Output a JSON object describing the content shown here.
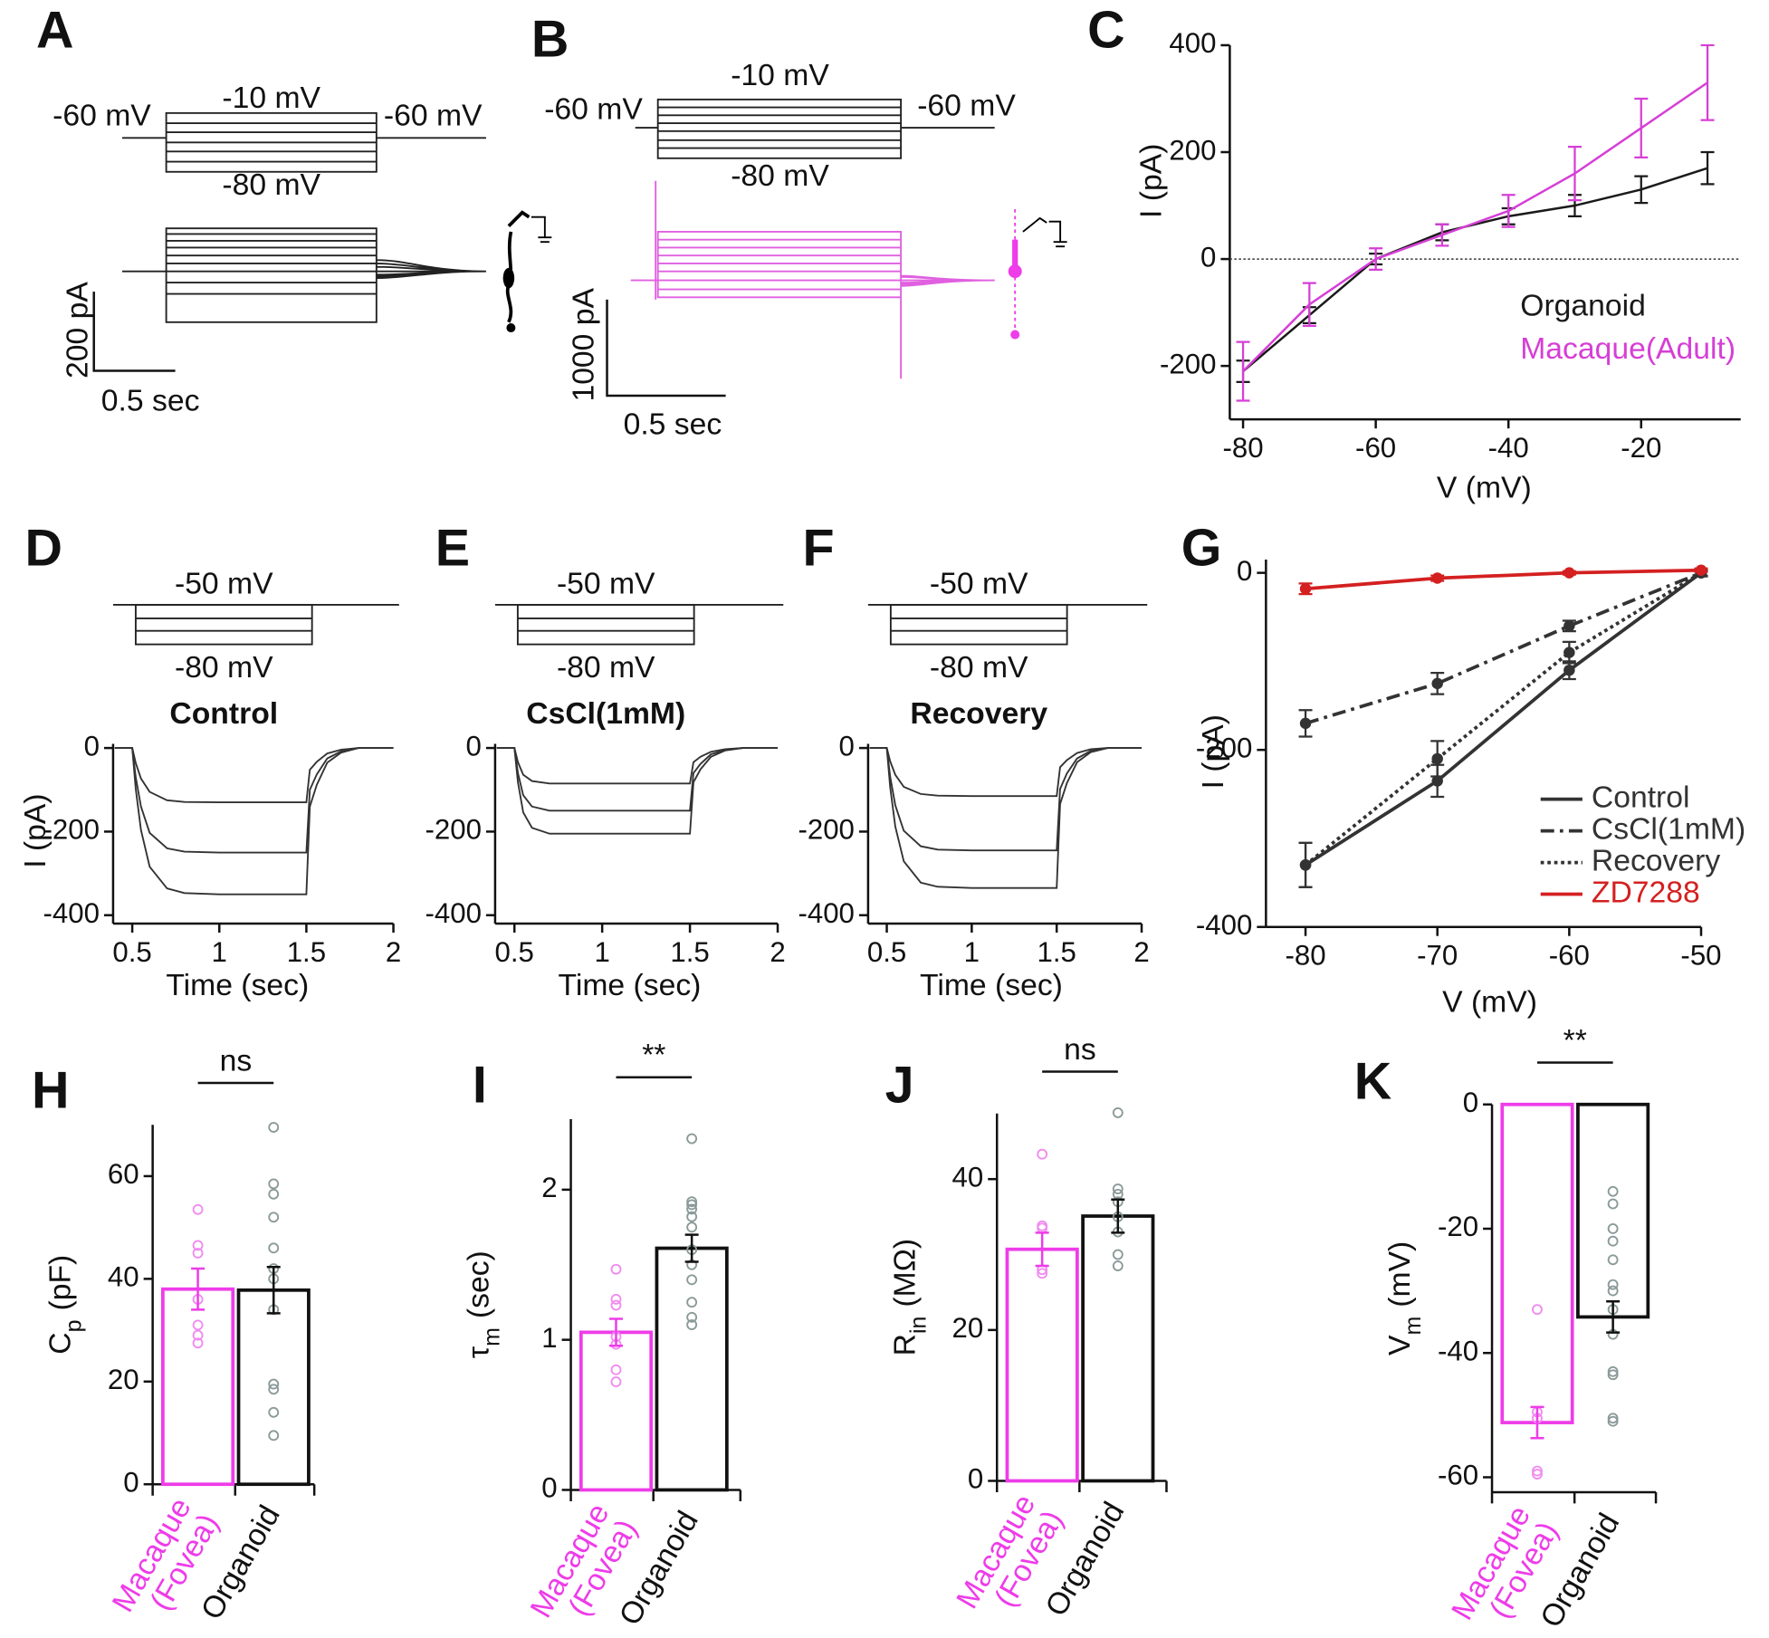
{
  "panels_ab": [
    {
      "label": "A",
      "step_top": "-10 mV",
      "hold_left": "-60 mV",
      "hold_right": "-60 mV",
      "step_bottom": "-80 mV",
      "scale_current": "200 pA",
      "scale_time": "0.5 sec"
    },
    {
      "label": "B",
      "step_top": "-10 mV",
      "hold_left": "-60 mV",
      "hold_right": "-60 mV",
      "step_bottom": "-80 mV",
      "scale_current": "1000 pA",
      "scale_time": "0.5 sec"
    }
  ],
  "chart_data": [
    {
      "panel": "C",
      "type": "line",
      "xlabel": "V (mV)",
      "ylabel": "I (pA)",
      "x": [
        -80,
        -70,
        -60,
        -50,
        -40,
        -30,
        -20,
        -10
      ],
      "xlim": [
        -82,
        -5
      ],
      "ylim": [
        -300,
        400
      ],
      "xticks": [
        -80,
        -60,
        -40,
        -20
      ],
      "yticks": [
        -200,
        0,
        200,
        400
      ],
      "zero_line": true,
      "series": [
        {
          "name": "Organoid",
          "color": "#1a1a1a",
          "values": [
            -210,
            -105,
            0,
            50,
            80,
            100,
            130,
            170
          ],
          "errors": [
            20,
            15,
            10,
            15,
            15,
            20,
            25,
            30
          ]
        },
        {
          "name": "Macaque(Adult)",
          "color": "#d63fd6",
          "values": [
            -210,
            -85,
            0,
            45,
            90,
            160,
            245,
            330
          ],
          "errors": [
            55,
            40,
            20,
            20,
            30,
            50,
            55,
            70
          ]
        }
      ]
    },
    {
      "panel": "G",
      "type": "line",
      "xlabel": "V (mV)",
      "ylabel": "I (pA)",
      "x": [
        -80,
        -70,
        -60,
        -50
      ],
      "xlim": [
        -83,
        -50
      ],
      "ylim": [
        -400,
        15
      ],
      "xticks": [
        -80,
        -70,
        -60,
        -50
      ],
      "yticks": [
        -400,
        -200,
        0
      ],
      "markers": true,
      "series": [
        {
          "name": "Control",
          "color": "#333333",
          "dash": "solid",
          "values": [
            -330,
            -235,
            -110,
            0
          ],
          "errors": [
            25,
            18,
            10,
            4
          ]
        },
        {
          "name": "CsCl(1mM)",
          "color": "#333333",
          "dash": "dashdot",
          "values": [
            -170,
            -125,
            -60,
            0
          ],
          "errors": [
            15,
            12,
            6,
            3
          ]
        },
        {
          "name": "Recovery",
          "color": "#333333",
          "dash": "dotted",
          "values": [
            -330,
            -210,
            -90,
            0
          ],
          "errors": [
            25,
            20,
            12,
            4
          ]
        },
        {
          "name": "ZD7288",
          "color": "#d42020",
          "dash": "solid",
          "values": [
            -18,
            -6,
            0,
            3
          ],
          "errors": [
            6,
            3,
            2,
            2
          ]
        }
      ]
    },
    {
      "panel": "D",
      "type": "line",
      "title": "Control",
      "annotations": [
        "-50 mV",
        "-80 mV"
      ],
      "xlabel": "Time (sec)",
      "ylabel": "I (pA)",
      "x": [
        0.4,
        0.5,
        0.52,
        0.55,
        0.6,
        0.7,
        0.8,
        1.0,
        1.2,
        1.5,
        1.52,
        1.56,
        1.62,
        1.7,
        1.8,
        2.0
      ],
      "xlim": [
        0.39,
        2
      ],
      "ylim": [
        -420,
        10
      ],
      "xticks": [
        0.5,
        1,
        1.5,
        2
      ],
      "yticks": [
        -400,
        -200,
        0
      ],
      "series": [
        {
          "color": "#333333",
          "values": [
            0,
            0,
            -36,
            -73,
            -105,
            -125,
            -129,
            -130,
            -130,
            -130,
            -52,
            -33,
            -13,
            -4,
            0,
            0
          ]
        },
        {
          "color": "#333333",
          "values": [
            0,
            0,
            -70,
            -140,
            -203,
            -240,
            -248,
            -250,
            -250,
            -250,
            -100,
            -63,
            -25,
            -8,
            0,
            0
          ]
        },
        {
          "color": "#333333",
          "values": [
            0,
            0,
            -98,
            -196,
            -284,
            -336,
            -347,
            -350,
            -350,
            -350,
            -140,
            -88,
            -35,
            -11,
            0,
            0
          ]
        }
      ]
    },
    {
      "panel": "E",
      "type": "line",
      "title": "CsCl(1mM)",
      "annotations": [
        "-50 mV",
        "-80 mV"
      ],
      "xlabel": "Time (sec)",
      "x": [
        0.4,
        0.5,
        0.52,
        0.55,
        0.6,
        0.7,
        0.8,
        1.0,
        1.2,
        1.5,
        1.52,
        1.56,
        1.62,
        1.7,
        1.8,
        2.0
      ],
      "xlim": [
        0.39,
        2
      ],
      "ylim": [
        -420,
        10
      ],
      "xticks": [
        0.5,
        1,
        1.5,
        2
      ],
      "yticks": [
        -400,
        -200,
        0
      ],
      "series": [
        {
          "color": "#333333",
          "values": [
            0,
            0,
            -34,
            -64,
            -79,
            -85,
            -85,
            -85,
            -85,
            -85,
            -34,
            -21,
            -9,
            -3,
            0,
            0
          ]
        },
        {
          "color": "#333333",
          "values": [
            0,
            0,
            -60,
            -113,
            -140,
            -150,
            -150,
            -150,
            -150,
            -150,
            -60,
            -38,
            -15,
            -5,
            0,
            0
          ]
        },
        {
          "color": "#333333",
          "values": [
            0,
            0,
            -82,
            -154,
            -191,
            -205,
            -205,
            -205,
            -205,
            -205,
            -82,
            -51,
            -21,
            -6,
            0,
            0
          ]
        }
      ]
    },
    {
      "panel": "F",
      "type": "line",
      "title": "Recovery",
      "annotations": [
        "-50 mV",
        "-80 mV"
      ],
      "xlabel": "Time (sec)",
      "x": [
        0.4,
        0.5,
        0.52,
        0.55,
        0.6,
        0.7,
        0.8,
        1.0,
        1.2,
        1.5,
        1.52,
        1.56,
        1.62,
        1.7,
        1.8,
        2.0
      ],
      "xlim": [
        0.39,
        2
      ],
      "ylim": [
        -420,
        10
      ],
      "xticks": [
        0.5,
        1,
        1.5,
        2
      ],
      "yticks": [
        -400,
        -200,
        0
      ],
      "series": [
        {
          "color": "#333333",
          "values": [
            0,
            0,
            -32,
            -64,
            -93,
            -110,
            -114,
            -115,
            -115,
            -115,
            -46,
            -29,
            -12,
            -3,
            0,
            0
          ]
        },
        {
          "color": "#333333",
          "values": [
            0,
            0,
            -69,
            -137,
            -198,
            -235,
            -243,
            -245,
            -245,
            -245,
            -98,
            -61,
            -25,
            -7,
            0,
            0
          ]
        },
        {
          "color": "#333333",
          "values": [
            0,
            0,
            -94,
            -188,
            -271,
            -322,
            -332,
            -335,
            -335,
            -335,
            -134,
            -84,
            -34,
            -10,
            0,
            0
          ]
        }
      ]
    },
    {
      "panel": "H",
      "type": "bar",
      "ylabel": {
        "symbol": "C",
        "sub": "p",
        "unit": "(pF)"
      },
      "significance": "ns",
      "categories": [
        "Macaque (Fovea)",
        "Organoid"
      ],
      "colors": [
        "#ee3ce9",
        "#111111"
      ],
      "point_colors": [
        "#f08cf0",
        "#8a9a98"
      ],
      "values": [
        38,
        37.8
      ],
      "errors": [
        4,
        4.5
      ],
      "ylim": [
        0,
        70
      ],
      "yticks": [
        0,
        20,
        40,
        60
      ],
      "points": [
        [
          53.5,
          46.5,
          45,
          36,
          31,
          29,
          27.5
        ],
        [
          69.5,
          58.5,
          56.5,
          52,
          46,
          42,
          40,
          34,
          19.5,
          18.5,
          14,
          9.5
        ]
      ]
    },
    {
      "panel": "I",
      "type": "bar",
      "ylabel": {
        "symbol": "τ",
        "sub": "m",
        "unit": "(sec)"
      },
      "significance": "**",
      "categories": [
        "Macaque (Fovea)",
        "Organoid"
      ],
      "colors": [
        "#ee3ce9",
        "#111111"
      ],
      "point_colors": [
        "#f08cf0",
        "#8a9a98"
      ],
      "values": [
        1.05,
        1.61
      ],
      "errors": [
        0.09,
        0.09
      ],
      "ylim": [
        0,
        2.47
      ],
      "yticks": [
        0,
        1,
        2
      ],
      "points": [
        [
          1.47,
          1.27,
          1.23,
          1.02,
          0.97,
          0.8,
          0.72
        ],
        [
          2.34,
          1.92,
          1.9,
          1.87,
          1.82,
          1.75,
          1.6,
          1.5,
          1.4,
          1.25,
          1.15,
          1.1
        ]
      ]
    },
    {
      "panel": "J",
      "type": "bar",
      "ylabel": {
        "symbol": "R",
        "sub": "in",
        "unit": "(MΩ)"
      },
      "significance": "ns",
      "categories": [
        "Macaque (Fovea)",
        "Organoid"
      ],
      "colors": [
        "#ee3ce9",
        "#111111"
      ],
      "point_colors": [
        "#f08cf0",
        "#8a9a98"
      ],
      "values": [
        30.7,
        35.1
      ],
      "errors": [
        2.2,
        2.2
      ],
      "ylim": [
        0,
        48.7
      ],
      "yticks": [
        0,
        20,
        40
      ],
      "points": [
        [
          43.3,
          33.8,
          33.5,
          28,
          27.5
        ],
        [
          48.8,
          38.7,
          38,
          37,
          35,
          33,
          30,
          28.5
        ]
      ]
    },
    {
      "panel": "K",
      "type": "bar",
      "ylabel": {
        "symbol": "V",
        "sub": "m",
        "unit": "(mV)"
      },
      "significance": "**",
      "categories": [
        "Macaque (Fovea)",
        "Organoid"
      ],
      "colors": [
        "#ee3ce9",
        "#111111"
      ],
      "point_colors": [
        "#f08cf0",
        "#8a9a98"
      ],
      "values": [
        -51.2,
        -34.2
      ],
      "errors": [
        2.5,
        2.5
      ],
      "ylim": [
        -62.4,
        0
      ],
      "yticks": [
        -60,
        -40,
        -20,
        0
      ],
      "points": [
        [
          -33,
          -49.5,
          -50.5,
          -59,
          -59.5
        ],
        [
          -14,
          -16,
          -20,
          -22,
          -25,
          -29,
          -30,
          -33,
          -37,
          -43,
          -43.5,
          -50.5,
          -51
        ]
      ]
    }
  ]
}
